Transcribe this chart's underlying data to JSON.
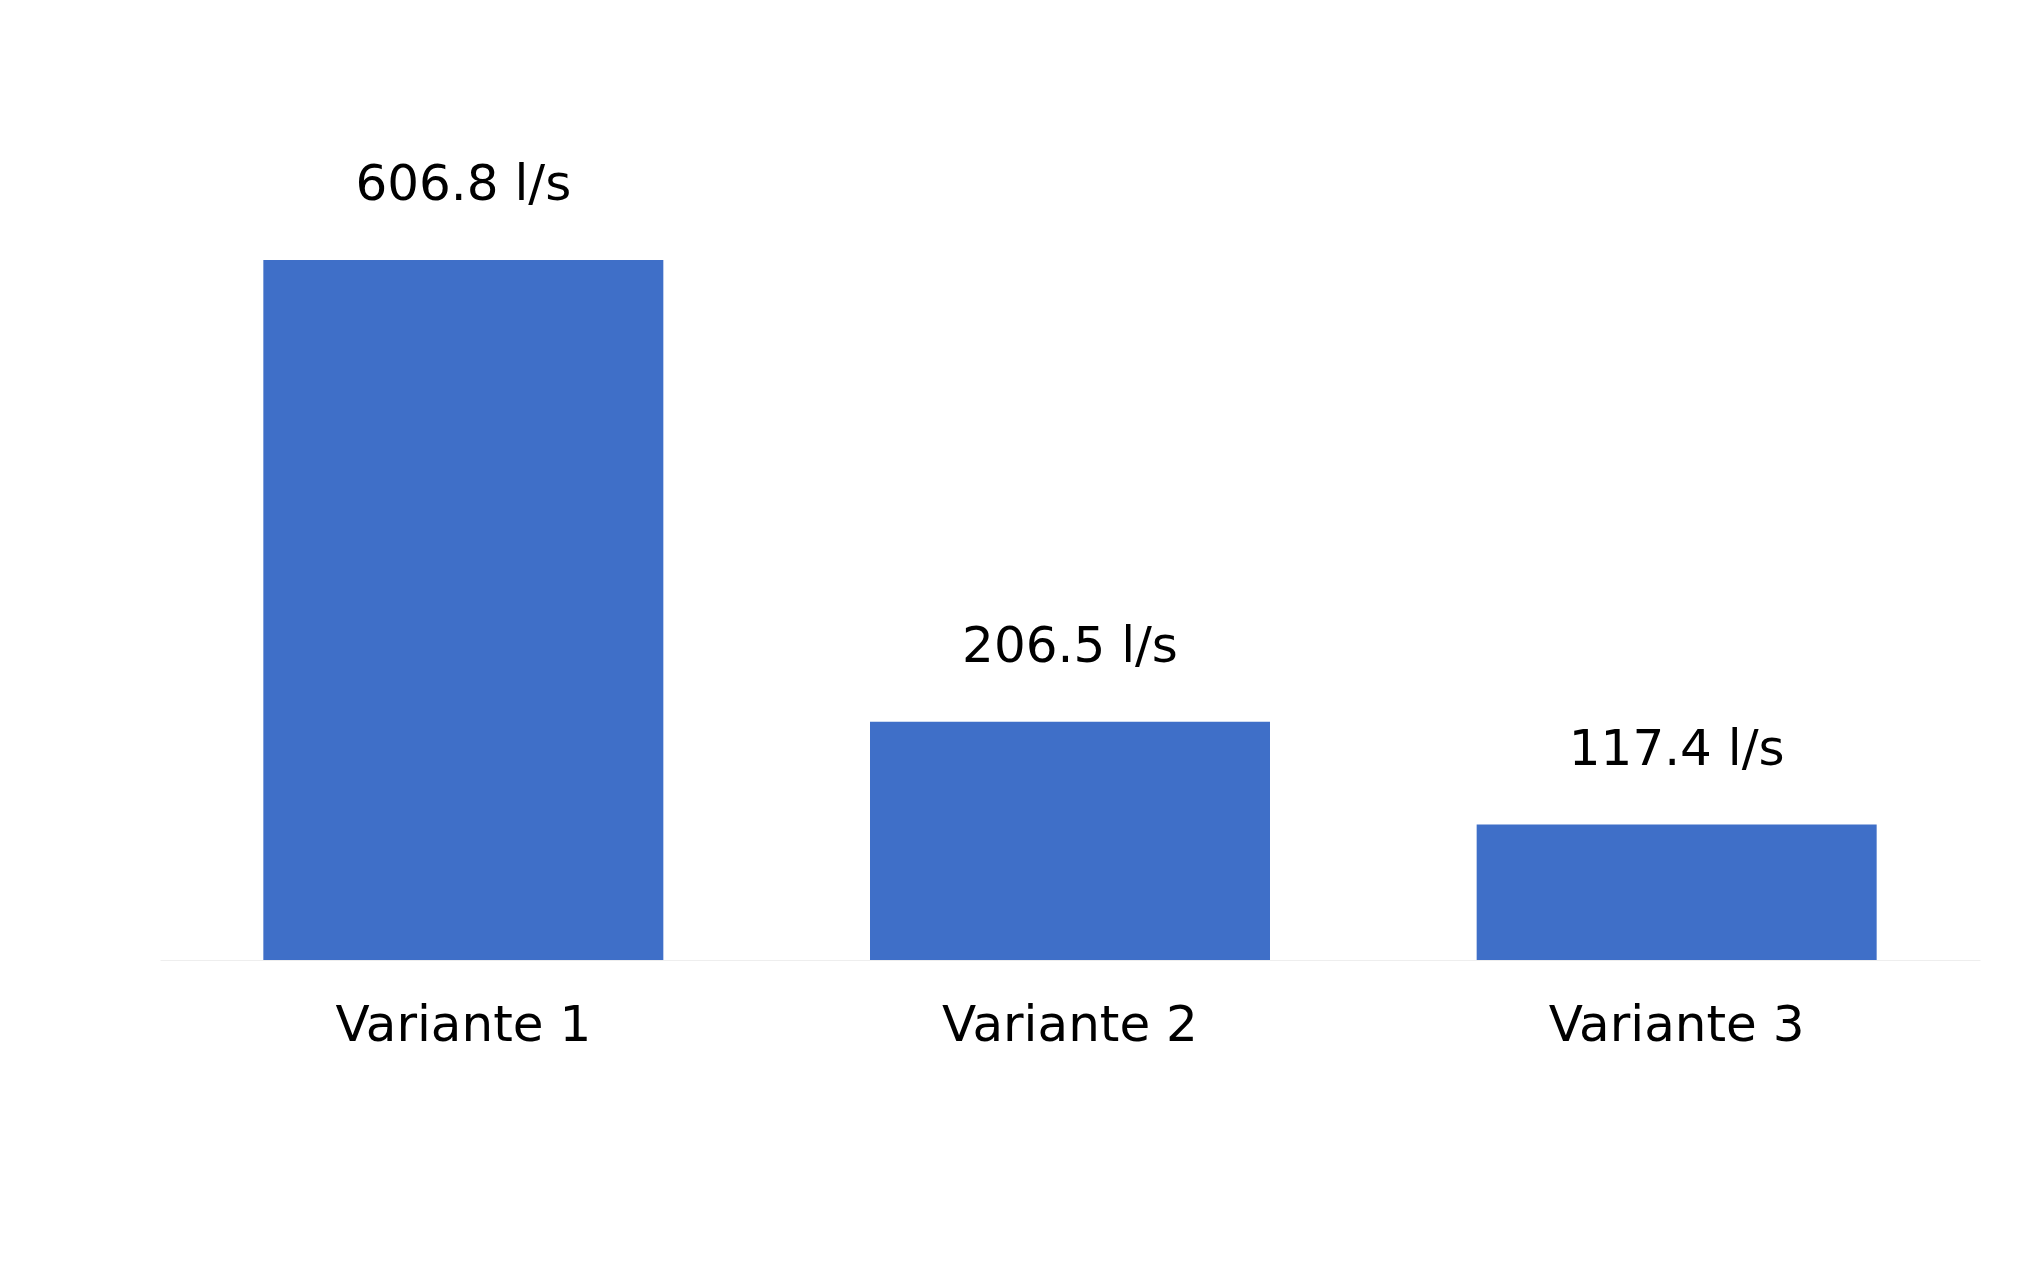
{
  "chart_data": {
    "type": "bar",
    "categories": [
      "Variante 1",
      "Variante 2",
      "Variante 3"
    ],
    "values": [
      606.8,
      206.5,
      117.4
    ],
    "value_labels": [
      "606.8 l/s",
      "206.5 l/s",
      "117.4 l/s"
    ],
    "color": "#3f6fc8"
  }
}
